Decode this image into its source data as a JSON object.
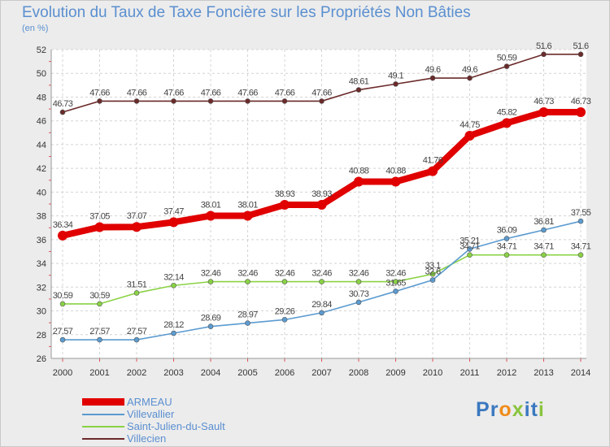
{
  "chart_data": {
    "type": "line",
    "title": "Evolution du Taux de Taxe Foncière sur les Propriétés Non Bâties",
    "ylabel": "(en %)",
    "xlabel": "",
    "ylim": [
      26,
      52
    ],
    "yticks": [
      "26",
      "28",
      "30",
      "32",
      "34",
      "36",
      "38",
      "40",
      "42",
      "44",
      "46",
      "48",
      "50",
      "52"
    ],
    "categories": [
      "2000",
      "2001",
      "2002",
      "2003",
      "2004",
      "2005",
      "2006",
      "2007",
      "2008",
      "2009",
      "2010",
      "2011",
      "2012",
      "2013",
      "2014"
    ],
    "grid": true,
    "legend": "bottom-left",
    "series": [
      {
        "name": "Villecien",
        "color": "#6b2a2a",
        "values": [
          46.73,
          47.66,
          47.66,
          47.66,
          47.66,
          47.66,
          47.66,
          47.66,
          48.61,
          49.1,
          49.6,
          49.6,
          50.59,
          51.6,
          51.6
        ],
        "labels": [
          "46.73",
          "47.66",
          "47.66",
          "47.66",
          "47.66",
          "47.66",
          "47.66",
          "47.66",
          "48.61",
          "49.1",
          "49.6",
          "49.6",
          "50.59",
          "51.6",
          "51.6"
        ]
      },
      {
        "name": "Saint-Julien-du-Sault",
        "color": "#8ad245",
        "values": [
          30.59,
          30.59,
          31.51,
          32.14,
          32.46,
          32.46,
          32.46,
          32.46,
          32.46,
          32.46,
          33.1,
          34.71,
          34.71,
          34.71,
          34.71
        ],
        "labels": [
          "30.59",
          "30.59",
          "31.51",
          "32.14",
          "32.46",
          "32.46",
          "32.46",
          "32.46",
          "32.46",
          "32.46",
          "33.1",
          "34.71",
          "34.71",
          "34.71",
          "34.71"
        ]
      },
      {
        "name": "Villevallier",
        "color": "#5b9bd0",
        "values": [
          27.57,
          27.57,
          27.57,
          28.12,
          28.69,
          28.97,
          29.26,
          29.84,
          30.73,
          31.65,
          32.6,
          35.21,
          36.09,
          36.81,
          37.55
        ],
        "labels": [
          "27.57",
          "27.57",
          "27.57",
          "28.12",
          "28.69",
          "28.97",
          "29.26",
          "29.84",
          "30.73",
          "31.65",
          "32.6",
          "35.21",
          "36.09",
          "36.81",
          "37.55"
        ]
      },
      {
        "name": "ARMEAU",
        "color": "#e00000",
        "values": [
          36.34,
          37.05,
          37.07,
          37.47,
          38.01,
          38.01,
          38.93,
          38.93,
          40.88,
          40.88,
          41.76,
          44.75,
          45.82,
          46.73,
          46.73
        ],
        "labels": [
          "36.34",
          "37.05",
          "37.07",
          "37.47",
          "38.01",
          "38.01",
          "38.93",
          "38.93",
          "40.88",
          "40.88",
          "41.76",
          "44.75",
          "45.82",
          "46.73",
          "46.73"
        ]
      }
    ]
  },
  "legend": {
    "items": [
      {
        "name": "ARMEAU",
        "color": "#e00000"
      },
      {
        "name": "Villevallier",
        "color": "#5b9bd0"
      },
      {
        "name": "Saint-Julien-du-Sault",
        "color": "#8ad245"
      },
      {
        "name": "Villecien",
        "color": "#6b2a2a"
      }
    ]
  },
  "logo": {
    "text": "Proxiti",
    "letters": [
      {
        "char": "P",
        "color": "#3a78c0"
      },
      {
        "char": "r",
        "color": "#3a78c0"
      },
      {
        "char": "o",
        "color": "#f08c1c"
      },
      {
        "char": "x",
        "color": "#8ac43f"
      },
      {
        "char": "i",
        "color": "#3a78c0"
      },
      {
        "char": "t",
        "color": "#3a78c0"
      },
      {
        "char": "i",
        "color": "#8ac43f"
      }
    ]
  }
}
